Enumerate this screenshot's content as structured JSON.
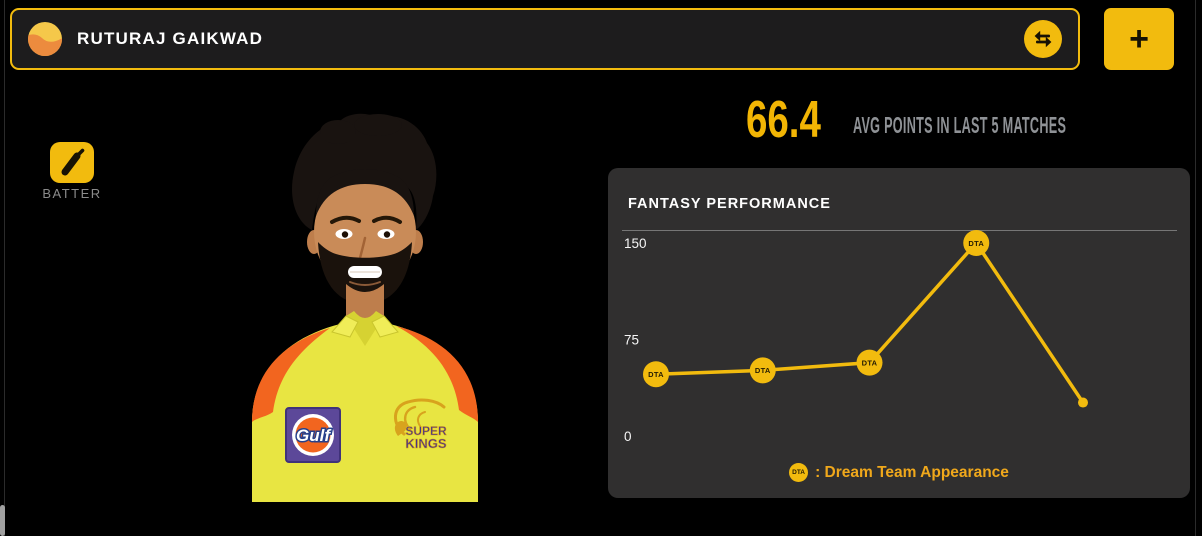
{
  "colors": {
    "accent_yellow": "#F2BB0E",
    "stat_yellow": "#F2B504",
    "legend_orange": "#F0A81B"
  },
  "header": {
    "player_name": "RUTURAJ GAIKWAD",
    "add_button_label": "+"
  },
  "player": {
    "role_label": "BATTER",
    "avg_points": "66.4",
    "avg_points_label": "AVG POINTS IN LAST 5 MATCHES",
    "photo_badges": {
      "sponsor_text": "Gulf",
      "team_text_line1": "SUPER",
      "team_text_line2": "KINGS"
    }
  },
  "chart_data": {
    "type": "line",
    "title": "FANTASY PERFORMANCE",
    "values": [
      48,
      51,
      57,
      150,
      26
    ],
    "dream_team_appearance": [
      true,
      true,
      true,
      true,
      false
    ],
    "marker_label": "DTA",
    "yticks": [
      150,
      75,
      0
    ],
    "ylim": [
      0,
      160
    ],
    "grid": false,
    "line_color": "#F2BB0E",
    "legend": {
      "marker": "DTA",
      "text": ": Dream Team Appearance",
      "position": "bottom-center"
    }
  }
}
